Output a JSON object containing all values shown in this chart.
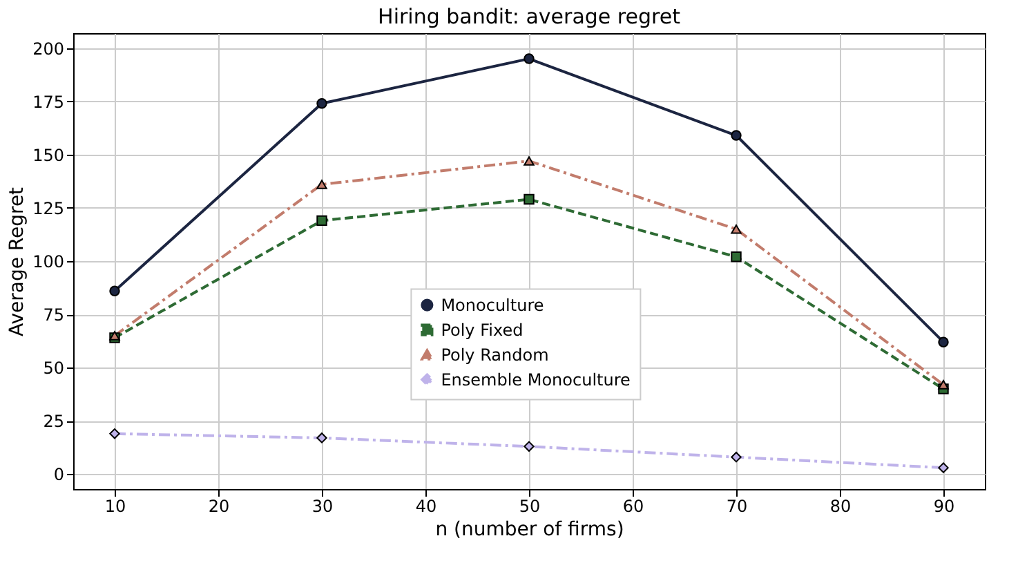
{
  "chart_data": {
    "type": "line",
    "title": "Hiring bandit: average regret",
    "xlabel": "n (number of firms)",
    "ylabel": "Average Regret",
    "x": [
      10,
      30,
      50,
      70,
      90
    ],
    "series": [
      {
        "name": "Monoculture",
        "color": "#1c2541",
        "marker": "circle",
        "line_style": "solid",
        "values": [
          86,
          174,
          195,
          159,
          62
        ]
      },
      {
        "name": "Poly Fixed",
        "color": "#2e6b34",
        "marker": "square",
        "line_style": "dashed",
        "values": [
          64,
          119,
          129,
          102,
          40
        ]
      },
      {
        "name": "Poly Random",
        "color": "#c27c6c",
        "marker": "triangle",
        "line_style": "dashdot",
        "values": [
          65,
          136,
          147,
          115,
          42
        ]
      },
      {
        "name": "Ensemble Monoculture",
        "color": "#bfb3ea",
        "marker": "diamond",
        "line_style": "dashdot",
        "values": [
          19,
          17,
          13,
          8,
          3
        ]
      }
    ],
    "xlim": [
      6,
      94
    ],
    "xticks": [
      10,
      20,
      30,
      40,
      50,
      60,
      70,
      80,
      90
    ],
    "ylim": [
      -7,
      207
    ],
    "yticks": [
      0,
      25,
      50,
      75,
      100,
      125,
      150,
      175,
      200
    ],
    "grid": true,
    "legend": "center"
  }
}
